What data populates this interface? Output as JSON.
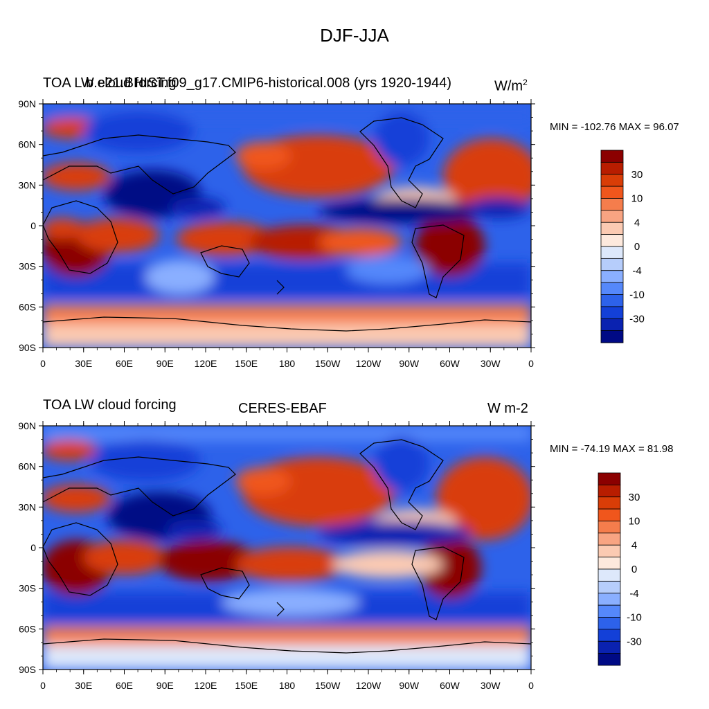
{
  "figure": {
    "title": "DJF-JJA"
  },
  "panels": [
    {
      "left_title": "TOA LW cloud forcing",
      "center_title": "b.e21.BHIST.f09_g17.CMIP6-historical.008 (yrs 1920-1944)",
      "units": "W/m",
      "units_sup": "2",
      "stats_text": "MIN = -102.76 MAX =  96.07"
    },
    {
      "left_title": "TOA LW cloud forcing",
      "center_title": "CERES-EBAF",
      "units": "W m-2",
      "units_sup": "",
      "stats_text": "MIN = -74.19 MAX =  81.98"
    }
  ],
  "axes": {
    "lat_labels": [
      "90N",
      "60N",
      "30N",
      "0",
      "30S",
      "60S",
      "90S"
    ],
    "lon_labels": [
      "0",
      "30E",
      "60E",
      "90E",
      "120E",
      "150E",
      "180",
      "150W",
      "120W",
      "90W",
      "60W",
      "30W",
      "0"
    ]
  },
  "colorbar": {
    "labels": [
      "30",
      "10",
      "4",
      "0",
      "-4",
      "-10",
      "-30"
    ],
    "colors": [
      "#8b0000",
      "#b81d00",
      "#d93d07",
      "#f0561c",
      "#f57d4c",
      "#f8a482",
      "#fbcab2",
      "#fde9dd",
      "#dde8fb",
      "#b6cdfb",
      "#8aafff",
      "#5588fb",
      "#2d62ea",
      "#1340d8",
      "#0a22b0",
      "#000a85"
    ]
  },
  "chart_data": [
    {
      "type": "heatmap",
      "title": "DJF-JJA",
      "subtitle": "b.e21.BHIST.f09_g17.CMIP6-historical.008 (yrs 1920-1944)",
      "variable": "TOA LW cloud forcing",
      "units": "W/m2",
      "min": -102.76,
      "max": 96.07,
      "contour_levels": [
        -40,
        -30,
        -20,
        -10,
        -8,
        -4,
        -2,
        0,
        2,
        4,
        8,
        10,
        20,
        30,
        40
      ],
      "xlim": [
        0,
        360
      ],
      "ylim": [
        -90,
        90
      ],
      "regions": [
        {
          "lon": [
            0,
            60
          ],
          "lat": [
            -35,
            0
          ],
          "value": 35
        },
        {
          "lon": [
            300,
            330
          ],
          "lat": [
            -30,
            0
          ],
          "value": 40
        },
        {
          "lon": [
            150,
            210
          ],
          "lat": [
            -25,
            0
          ],
          "value": 25
        },
        {
          "lon": [
            160,
            240
          ],
          "lat": [
            30,
            60
          ],
          "value": 15
        },
        {
          "lon": [
            300,
            360
          ],
          "lat": [
            40,
            70
          ],
          "value": 20
        },
        {
          "lon": [
            60,
            140
          ],
          "lat": [
            5,
            35
          ],
          "value": -35
        },
        {
          "lon": [
            190,
            320
          ],
          "lat": [
            0,
            20
          ],
          "value": -25
        },
        {
          "lon": [
            0,
            360
          ],
          "lat": [
            -55,
            -35
          ],
          "value": -10
        },
        {
          "lon": [
            0,
            360
          ],
          "lat": [
            -90,
            -60
          ],
          "value": 4
        }
      ]
    },
    {
      "type": "heatmap",
      "title": "DJF-JJA",
      "subtitle": "CERES-EBAF",
      "variable": "TOA LW cloud forcing",
      "units": "W m-2",
      "min": -74.19,
      "max": 81.98,
      "contour_levels": [
        -40,
        -30,
        -20,
        -10,
        -8,
        -4,
        -2,
        0,
        2,
        4,
        8,
        10,
        20,
        30,
        40
      ],
      "xlim": [
        0,
        360
      ],
      "ylim": [
        -90,
        90
      ],
      "regions": [
        {
          "lon": [
            0,
            60
          ],
          "lat": [
            -35,
            0
          ],
          "value": 35
        },
        {
          "lon": [
            300,
            330
          ],
          "lat": [
            -30,
            0
          ],
          "value": 40
        },
        {
          "lon": [
            120,
            170
          ],
          "lat": [
            -20,
            0
          ],
          "value": 30
        },
        {
          "lon": [
            160,
            240
          ],
          "lat": [
            25,
            60
          ],
          "value": 20
        },
        {
          "lon": [
            300,
            360
          ],
          "lat": [
            20,
            70
          ],
          "value": 15
        },
        {
          "lon": [
            60,
            140
          ],
          "lat": [
            10,
            40
          ],
          "value": -35
        },
        {
          "lon": [
            190,
            300
          ],
          "lat": [
            -5,
            15
          ],
          "value": -20
        },
        {
          "lon": [
            0,
            360
          ],
          "lat": [
            -55,
            -35
          ],
          "value": -10
        },
        {
          "lon": [
            0,
            360
          ],
          "lat": [
            -90,
            -65
          ],
          "value": 0
        }
      ]
    }
  ]
}
